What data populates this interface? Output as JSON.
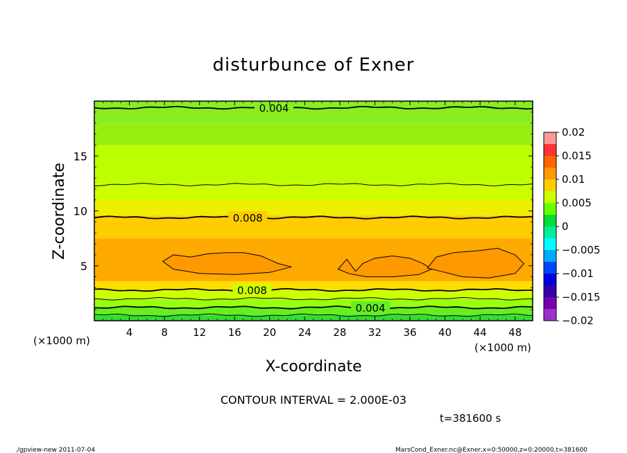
{
  "chart_data": {
    "type": "heatmap",
    "title": "disturbunce of Exner",
    "xlabel": "X-coordinate",
    "ylabel": "Z-coordinate",
    "x_unit_left": "(×1000 m)",
    "x_unit_right": "(×1000 m)",
    "x_ticks": [
      "4",
      "8",
      "12",
      "16",
      "20",
      "24",
      "28",
      "32",
      "36",
      "40",
      "44",
      "48"
    ],
    "y_ticks": [
      "5",
      "10",
      "15"
    ],
    "xlim": [
      0,
      50
    ],
    "ylim": [
      0,
      20
    ],
    "colorbar": {
      "labels": [
        "0.02",
        "0.015",
        "0.01",
        "0.005",
        "0",
        "−0.005",
        "−0.01",
        "−0.015",
        "−0.02"
      ],
      "range": [
        -0.02,
        0.02
      ],
      "colors": [
        "#ff9999",
        "#ff3333",
        "#ff6600",
        "#ff9900",
        "#ffcc00",
        "#ccff00",
        "#66ff00",
        "#00dd33",
        "#00ee99",
        "#00ffff",
        "#00aaff",
        "#0044ff",
        "#0000dd",
        "#3300aa",
        "#7700aa",
        "#9933cc"
      ]
    },
    "bands": [
      {
        "z": [
          0.0,
          0.5
        ],
        "value": 0.0015,
        "color": "#33dd33"
      },
      {
        "z": [
          0.5,
          1.2
        ],
        "value": 0.0025,
        "color": "#66ee22"
      },
      {
        "z": [
          1.2,
          2.0
        ],
        "value": 0.0045,
        "color": "#99ff11"
      },
      {
        "z": [
          2.0,
          2.8
        ],
        "value": 0.0065,
        "color": "#ccff00"
      },
      {
        "z": [
          2.8,
          3.6
        ],
        "value": 0.0085,
        "color": "#ffdd00"
      },
      {
        "z": [
          3.6,
          7.5
        ],
        "value": 0.0105,
        "color": "#ffaa00"
      },
      {
        "z": [
          7.5,
          9.6
        ],
        "value": 0.0095,
        "color": "#ffcc00"
      },
      {
        "z": [
          9.6,
          11.0
        ],
        "value": 0.0075,
        "color": "#eeee00"
      },
      {
        "z": [
          11.0,
          12.5
        ],
        "value": 0.0065,
        "color": "#ccff00"
      },
      {
        "z": [
          12.5,
          16.0
        ],
        "value": 0.0055,
        "color": "#bbff00"
      },
      {
        "z": [
          16.0,
          18.0
        ],
        "value": 0.0045,
        "color": "#99ee11"
      },
      {
        "z": [
          18.0,
          20.0
        ],
        "value": 0.0035,
        "color": "#88ee22"
      }
    ],
    "contours": [
      {
        "z": 19.4,
        "value": 0.004,
        "label": "0.004",
        "label_x": 20.5
      },
      {
        "z": 12.4,
        "value": 0.006
      },
      {
        "z": 9.4,
        "value": 0.008,
        "label": "0.008",
        "label_x": 17.5
      },
      {
        "z": 2.8,
        "value": 0.008,
        "label": "0.008",
        "label_x": 18
      },
      {
        "z": 2.0,
        "value": 0.006
      },
      {
        "z": 1.2,
        "value": 0.004,
        "label": "0.004",
        "label_x": 31.5
      },
      {
        "z": 0.5,
        "value": 0.002
      }
    ],
    "blobs": [
      {
        "value": 0.012,
        "points": [
          [
            7.8,
            5.4
          ],
          [
            9,
            6.0
          ],
          [
            11,
            5.8
          ],
          [
            13,
            6.1
          ],
          [
            15,
            6.2
          ],
          [
            17,
            6.2
          ],
          [
            19,
            5.9
          ],
          [
            21,
            5.2
          ],
          [
            22.5,
            4.9
          ],
          [
            20,
            4.4
          ],
          [
            16,
            4.2
          ],
          [
            12,
            4.3
          ],
          [
            9,
            4.7
          ]
        ]
      },
      {
        "value": 0.012,
        "points": [
          [
            27.8,
            4.7
          ],
          [
            28.8,
            5.6
          ],
          [
            29.8,
            4.5
          ],
          [
            30.6,
            5.2
          ],
          [
            32,
            5.7
          ],
          [
            34,
            5.9
          ],
          [
            36,
            5.7
          ],
          [
            37.5,
            5.2
          ],
          [
            38.5,
            4.7
          ],
          [
            37,
            4.2
          ],
          [
            34,
            4.0
          ],
          [
            31,
            4.0
          ],
          [
            29,
            4.3
          ]
        ]
      },
      {
        "value": 0.012,
        "points": [
          [
            38,
            4.8
          ],
          [
            39,
            5.8
          ],
          [
            41,
            6.2
          ],
          [
            44,
            6.4
          ],
          [
            46,
            6.6
          ],
          [
            48,
            6.0
          ],
          [
            49,
            5.2
          ],
          [
            48,
            4.3
          ],
          [
            45,
            3.9
          ],
          [
            42,
            4.0
          ],
          [
            39.5,
            4.5
          ]
        ]
      }
    ]
  },
  "annotations": {
    "contour_interval": "CONTOUR INTERVAL = 2.000E-03",
    "time": "t=381600  s",
    "footer_left": "./gpview-new   2011-07-04",
    "footer_right": "MarsCond_Exner.nc@Exner,x=0:50000,z=0:20000,t=381600"
  }
}
